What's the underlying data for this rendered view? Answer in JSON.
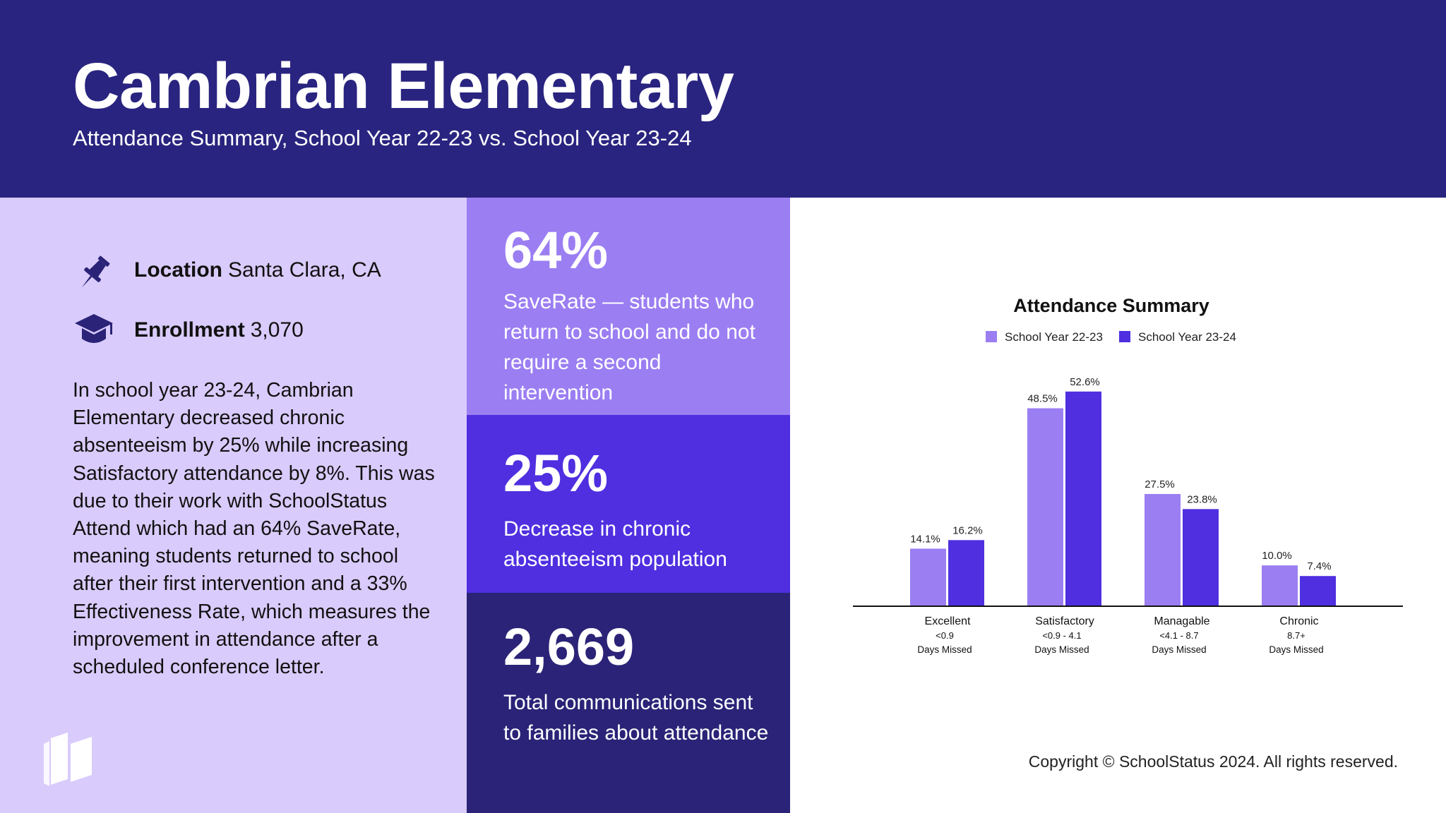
{
  "header": {
    "title": "Cambrian Elementary",
    "subtitle": "Attendance Summary, School Year 22-23 vs. School Year 23-24"
  },
  "info": {
    "location_label": "Location",
    "location_value": "Santa Clara, CA",
    "enrollment_label": "Enrollment",
    "enrollment_value": "3,070",
    "location_icon": "pushpin-icon",
    "enrollment_icon": "graduation-cap-icon",
    "brand_icon": "books-icon",
    "paragraph": "In school year 23-24, Cambrian Elementary decreased chronic absenteeism by 25% while increasing Satisfactory attendance by 8%. This was due to their work with SchoolStatus Attend which had an 64% SaveRate, meaning students returned to school after their first intervention and a 33% Effectiveness Rate, which measures the improvement in attendance after a scheduled conference letter."
  },
  "stats": [
    {
      "value": "64%",
      "description": "SaveRate — students who return to school and do not require a second intervention"
    },
    {
      "value": "25%",
      "description": "Decrease in chronic absenteeism population"
    },
    {
      "value": "2,669",
      "description": "Total communications sent to families about attendance"
    }
  ],
  "colors": {
    "header_bg": "#29247f",
    "left_bg": "#d9cbfb",
    "stat1_bg": "#9b7ef2",
    "stat2_bg": "#4f2fe0",
    "stat3_bg": "#2a2377",
    "series_a": "#9b7ef2",
    "series_b": "#4f2fe0"
  },
  "chart_data": {
    "type": "bar",
    "title": "Attendance Summary",
    "categories": [
      "Excellent",
      "Satisfactory",
      "Managable",
      "Chronic"
    ],
    "category_sublabels": [
      [
        "<0.9",
        "Days Missed"
      ],
      [
        "<0.9 - 4.1",
        "Days Missed"
      ],
      [
        "<4.1 - 8.7",
        "Days Missed"
      ],
      [
        "8.7+",
        "Days Missed"
      ]
    ],
    "series": [
      {
        "name": "School Year 22-23",
        "values": [
          14.1,
          48.5,
          27.5,
          10.0
        ],
        "labels": [
          "14.1%",
          "48.5%",
          "27.5%",
          "10.0%"
        ],
        "color": "#9b7ef2"
      },
      {
        "name": "School Year 23-24",
        "values": [
          16.2,
          52.6,
          23.8,
          7.4
        ],
        "labels": [
          "16.2%",
          "52.6%",
          "23.8%",
          "7.4%"
        ],
        "color": "#4f2fe0"
      }
    ],
    "ylim": [
      0,
      60
    ],
    "xlabel": "",
    "ylabel": "",
    "grid": false,
    "legend": "top-center"
  },
  "footer": {
    "copyright": "Copyright © SchoolStatus 2024. All rights reserved."
  }
}
